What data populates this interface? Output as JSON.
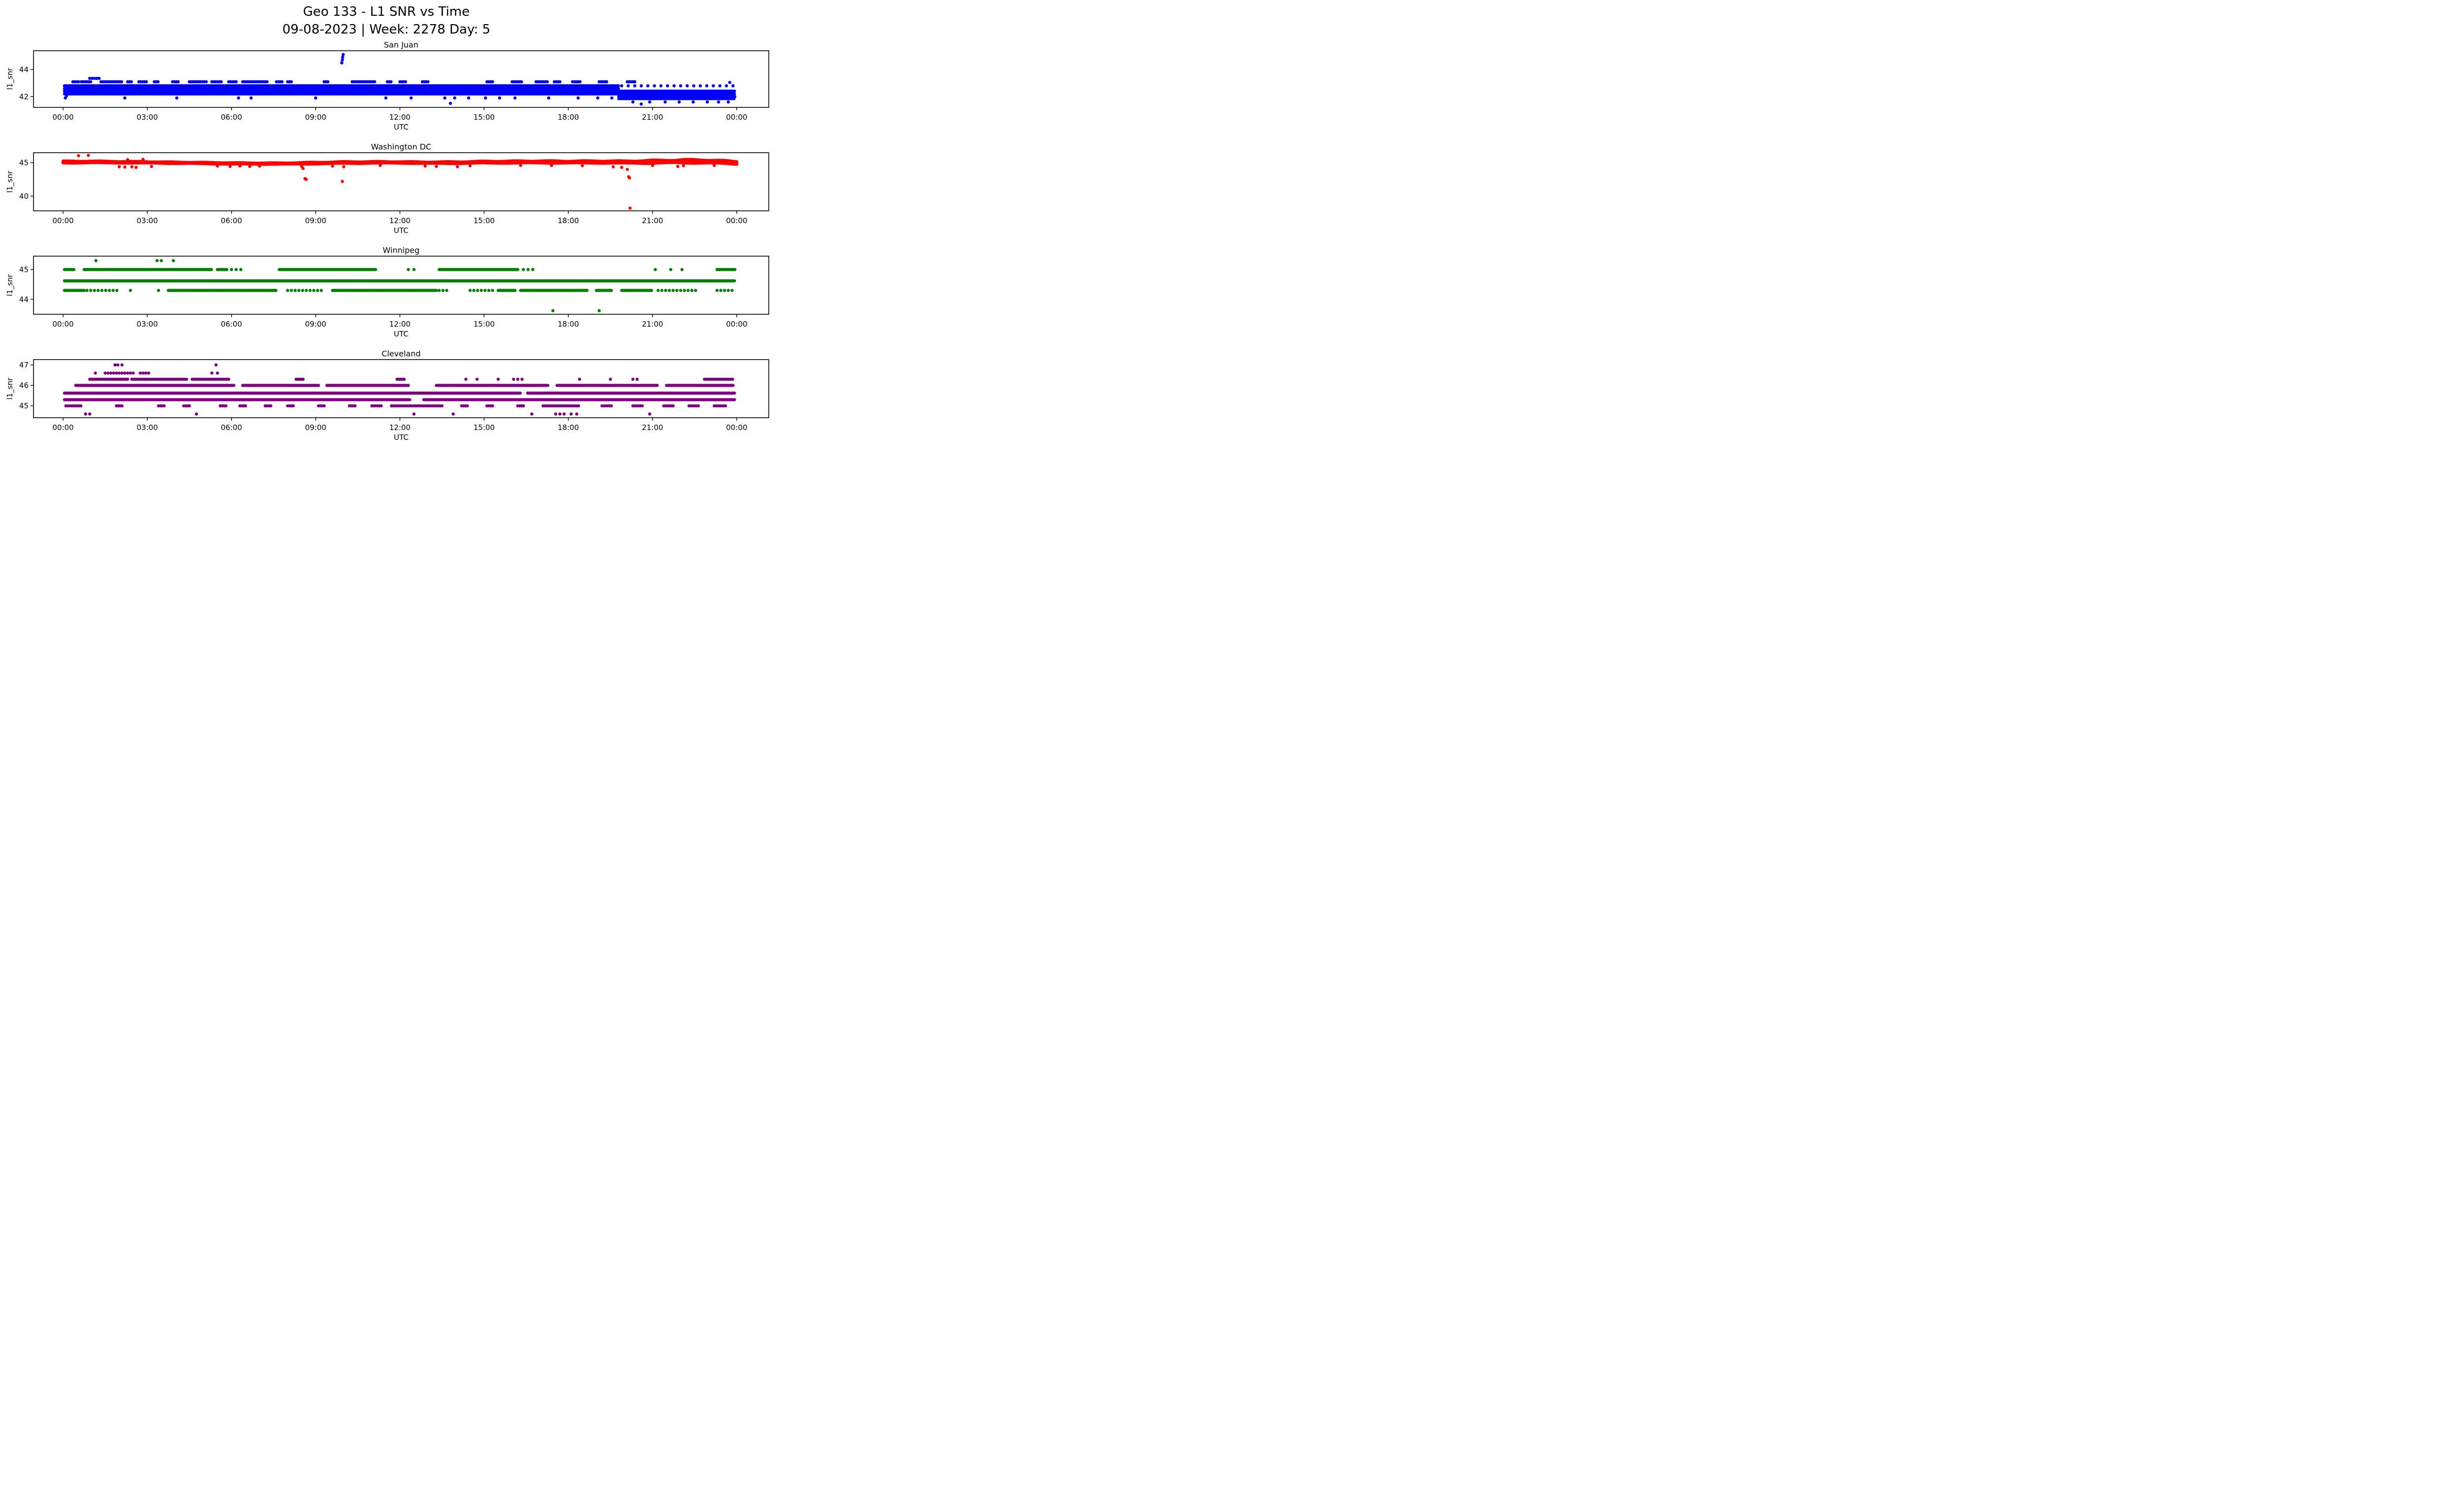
{
  "figure": {
    "suptitle_line1": "Geo 133 - L1 SNR vs Time",
    "suptitle_line2": "09-08-2023 | Week: 2278 Day: 5",
    "background": "#ffffff",
    "text_color": "#000000",
    "spine_color": "#000000"
  },
  "axes_labels": {
    "xlabel": "UTC",
    "ylabel": "l1_snr"
  },
  "x_axis": {
    "range_hours": [
      0,
      24
    ],
    "tick_hours": [
      0,
      3,
      6,
      9,
      12,
      15,
      18,
      21,
      24
    ],
    "tick_labels": [
      "00:00",
      "03:00",
      "06:00",
      "09:00",
      "12:00",
      "15:00",
      "18:00",
      "21:00",
      "00:00"
    ]
  },
  "chart_data": [
    {
      "type": "scatter",
      "station": "San Juan",
      "color": "#0000ff",
      "ylim": [
        41.2,
        45.4
      ],
      "yticks": [
        42,
        44
      ],
      "rows": [
        {
          "v": 43.35,
          "step_min": 5,
          "segments": [
            [
              0.95,
              1.35
            ]
          ]
        },
        {
          "v": 43.1,
          "step_min": 4,
          "segments": [
            [
              0.35,
              0.55
            ],
            [
              0.65,
              1.0
            ],
            [
              1.35,
              2.1
            ],
            [
              2.3,
              2.5
            ],
            [
              2.7,
              3.0
            ],
            [
              3.25,
              3.45
            ],
            [
              3.9,
              4.15
            ],
            [
              4.5,
              5.1
            ],
            [
              5.3,
              5.65
            ],
            [
              5.9,
              6.2
            ],
            [
              6.4,
              7.3
            ],
            [
              7.6,
              7.8
            ],
            [
              8.0,
              8.15
            ],
            [
              9.3,
              9.45
            ],
            [
              10.3,
              11.1
            ],
            [
              11.55,
              11.7
            ],
            [
              12.0,
              12.25
            ],
            [
              12.8,
              13.05
            ],
            [
              15.1,
              15.35
            ],
            [
              16.0,
              16.35
            ],
            [
              16.85,
              17.25
            ],
            [
              17.5,
              17.75
            ],
            [
              18.15,
              18.45
            ],
            [
              19.1,
              19.4
            ],
            [
              20.1,
              20.4
            ]
          ]
        },
        {
          "v": 42.8,
          "step_min": 2,
          "segments": [
            [
              0.05,
              19.8
            ]
          ]
        },
        {
          "v": 42.8,
          "step_min": 14,
          "segments": [
            [
              19.9,
              23.9
            ]
          ]
        },
        {
          "v": 42.6,
          "step_min": 2,
          "segments": [
            [
              0.05,
              19.8
            ]
          ]
        },
        {
          "v": 42.4,
          "step_min": 2,
          "segments": [
            [
              0.05,
              23.95
            ]
          ]
        },
        {
          "v": 42.2,
          "step_min": 2,
          "segments": [
            [
              0.05,
              23.95
            ]
          ]
        },
        {
          "v": 42.0,
          "step_min": 2,
          "segments": [
            [
              19.8,
              23.95
            ]
          ]
        },
        {
          "v": 41.85,
          "step_min": 3,
          "segments": [
            [
              19.8,
              23.95
            ]
          ]
        }
      ],
      "points": [
        [
          0.08,
          41.9
        ],
        [
          0.12,
          42.05
        ],
        [
          2.2,
          41.9
        ],
        [
          4.05,
          41.9
        ],
        [
          6.25,
          41.9
        ],
        [
          6.7,
          41.9
        ],
        [
          9.0,
          41.9
        ],
        [
          11.5,
          41.9
        ],
        [
          12.4,
          41.9
        ],
        [
          13.6,
          41.9
        ],
        [
          13.8,
          41.5
        ],
        [
          13.95,
          41.9
        ],
        [
          14.45,
          41.9
        ],
        [
          15.05,
          41.9
        ],
        [
          15.55,
          41.9
        ],
        [
          16.1,
          41.9
        ],
        [
          17.3,
          41.9
        ],
        [
          18.35,
          41.9
        ],
        [
          19.05,
          41.9
        ],
        [
          19.55,
          41.9
        ],
        [
          20.3,
          41.6
        ],
        [
          20.6,
          41.45
        ],
        [
          20.9,
          41.6
        ],
        [
          21.45,
          41.6
        ],
        [
          21.95,
          41.6
        ],
        [
          22.45,
          41.6
        ],
        [
          22.95,
          41.6
        ],
        [
          23.35,
          41.6
        ],
        [
          23.7,
          41.6
        ],
        [
          9.93,
          44.5
        ],
        [
          9.95,
          44.72
        ],
        [
          9.96,
          44.92
        ],
        [
          9.98,
          45.12
        ],
        [
          23.75,
          43.05
        ]
      ]
    },
    {
      "type": "scatter",
      "station": "Washington DC",
      "color": "#ff0000",
      "ylim": [
        37.8,
        46.5
      ],
      "yticks": [
        40,
        45
      ],
      "band": {
        "step_min": 1.2,
        "control_points": [
          [
            0,
            45.1,
            0.15
          ],
          [
            1,
            45.12,
            0.14
          ],
          [
            2,
            45.08,
            0.13
          ],
          [
            3,
            45.05,
            0.12
          ],
          [
            4,
            45.0,
            0.11
          ],
          [
            5,
            44.95,
            0.11
          ],
          [
            6,
            44.9,
            0.11
          ],
          [
            7,
            44.87,
            0.1
          ],
          [
            8,
            44.88,
            0.11
          ],
          [
            9,
            44.95,
            0.13
          ],
          [
            10,
            45.02,
            0.14
          ],
          [
            11,
            45.05,
            0.13
          ],
          [
            12,
            45.05,
            0.12
          ],
          [
            13,
            45.0,
            0.13
          ],
          [
            14,
            45.02,
            0.14
          ],
          [
            15,
            45.08,
            0.16
          ],
          [
            16,
            45.1,
            0.17
          ],
          [
            17,
            45.12,
            0.18
          ],
          [
            18,
            45.1,
            0.18
          ],
          [
            19,
            45.12,
            0.18
          ],
          [
            20,
            45.08,
            0.2
          ],
          [
            21,
            45.15,
            0.24
          ],
          [
            22,
            45.2,
            0.28
          ],
          [
            22.8,
            45.22,
            0.28
          ],
          [
            23.4,
            45.1,
            0.28
          ],
          [
            24,
            45.0,
            0.25
          ]
        ]
      },
      "rows": [],
      "points": [
        [
          0.55,
          46.05
        ],
        [
          0.9,
          46.1
        ],
        [
          2.3,
          45.45
        ],
        [
          2.85,
          45.5
        ],
        [
          2.0,
          44.4
        ],
        [
          2.2,
          44.35
        ],
        [
          2.45,
          44.4
        ],
        [
          2.6,
          44.3
        ],
        [
          3.15,
          44.45
        ],
        [
          5.5,
          44.5
        ],
        [
          5.95,
          44.45
        ],
        [
          6.3,
          44.5
        ],
        [
          6.65,
          44.45
        ],
        [
          7.0,
          44.5
        ],
        [
          8.5,
          44.45
        ],
        [
          8.55,
          44.15
        ],
        [
          8.62,
          42.62
        ],
        [
          8.66,
          42.5
        ],
        [
          9.6,
          44.5
        ],
        [
          9.95,
          42.2
        ],
        [
          10.0,
          44.4
        ],
        [
          11.3,
          44.6
        ],
        [
          12.9,
          44.5
        ],
        [
          13.3,
          44.45
        ],
        [
          14.05,
          44.4
        ],
        [
          14.5,
          44.55
        ],
        [
          16.3,
          44.6
        ],
        [
          17.4,
          44.6
        ],
        [
          18.5,
          44.55
        ],
        [
          19.6,
          44.4
        ],
        [
          19.9,
          44.3
        ],
        [
          20.1,
          44.0
        ],
        [
          20.15,
          42.9
        ],
        [
          20.18,
          42.72
        ],
        [
          20.2,
          38.2
        ],
        [
          21.0,
          44.6
        ],
        [
          21.9,
          44.45
        ],
        [
          22.1,
          44.55
        ],
        [
          23.2,
          44.6
        ]
      ]
    },
    {
      "type": "scatter",
      "station": "Winnipeg",
      "color": "#008000",
      "ylim": [
        43.5,
        45.45
      ],
      "yticks": [
        44,
        45
      ],
      "rows": [
        {
          "v": 45.0,
          "step_min": 2,
          "segments": [
            [
              0.05,
              0.4
            ],
            [
              0.75,
              5.3
            ],
            [
              5.5,
              5.85
            ],
            [
              7.7,
              11.15
            ],
            [
              13.4,
              16.2
            ],
            [
              23.3,
              23.95
            ]
          ]
        },
        {
          "v": 45.0,
          "step_min": 10,
          "segments": [
            [
              6.0,
              6.4
            ],
            [
              16.4,
              16.9
            ]
          ]
        },
        {
          "v": 44.62,
          "step_min": 2,
          "segments": [
            [
              0.05,
              23.95
            ]
          ]
        },
        {
          "v": 44.3,
          "step_min": 2,
          "segments": [
            [
              0.05,
              0.75
            ],
            [
              3.75,
              7.6
            ],
            [
              9.6,
              13.3
            ],
            [
              15.5,
              16.1
            ],
            [
              16.3,
              18.7
            ],
            [
              19.0,
              19.55
            ],
            [
              19.9,
              21.0
            ]
          ]
        },
        {
          "v": 44.3,
          "step_min": 8,
          "segments": [
            [
              0.85,
              1.95
            ],
            [
              8.0,
              9.2
            ],
            [
              13.4,
              13.7
            ],
            [
              14.5,
              15.3
            ],
            [
              21.2,
              22.6
            ],
            [
              23.3,
              23.85
            ]
          ]
        }
      ],
      "points": [
        [
          1.17,
          45.3
        ],
        [
          3.35,
          45.3
        ],
        [
          3.5,
          45.3
        ],
        [
          3.93,
          45.3
        ],
        [
          12.3,
          45.0
        ],
        [
          12.5,
          45.0
        ],
        [
          21.1,
          45.0
        ],
        [
          21.65,
          45.0
        ],
        [
          22.05,
          45.0
        ],
        [
          2.4,
          44.3
        ],
        [
          3.4,
          44.3
        ],
        [
          17.45,
          43.62
        ],
        [
          19.1,
          43.62
        ]
      ]
    },
    {
      "type": "scatter",
      "station": "Cleveland",
      "color": "#800080",
      "ylim": [
        44.42,
        47.26
      ],
      "yticks": [
        45,
        46,
        47
      ],
      "rows": [
        {
          "v": 46.6,
          "step_min": 6,
          "segments": [
            [
              1.5,
              2.6
            ],
            [
              2.75,
              3.1
            ]
          ]
        },
        {
          "v": 46.3,
          "step_min": 3,
          "segments": [
            [
              0.95,
              2.3
            ],
            [
              2.45,
              4.4
            ],
            [
              4.6,
              5.9
            ],
            [
              8.3,
              8.6
            ],
            [
              11.9,
              12.2
            ],
            [
              22.85,
              23.9
            ]
          ]
        },
        {
          "v": 46.0,
          "step_min": 2,
          "segments": [
            [
              0.45,
              6.1
            ],
            [
              6.4,
              9.1
            ],
            [
              9.4,
              12.3
            ],
            [
              13.3,
              17.3
            ],
            [
              17.6,
              21.2
            ],
            [
              21.5,
              23.9
            ]
          ]
        },
        {
          "v": 45.62,
          "step_min": 2,
          "segments": [
            [
              0.05,
              16.3
            ],
            [
              16.55,
              23.95
            ]
          ]
        },
        {
          "v": 45.3,
          "step_min": 2,
          "segments": [
            [
              0.05,
              12.35
            ],
            [
              12.85,
              23.95
            ]
          ]
        },
        {
          "v": 45.0,
          "step_min": 4,
          "segments": [
            [
              0.1,
              0.65
            ],
            [
              1.9,
              2.15
            ],
            [
              3.4,
              3.65
            ],
            [
              4.3,
              4.55
            ],
            [
              5.6,
              5.85
            ],
            [
              6.3,
              6.55
            ],
            [
              7.2,
              7.45
            ],
            [
              8.0,
              8.25
            ],
            [
              9.1,
              9.35
            ],
            [
              10.2,
              10.45
            ],
            [
              11.0,
              11.35
            ],
            [
              11.7,
              13.5
            ],
            [
              14.2,
              14.45
            ],
            [
              15.1,
              15.35
            ],
            [
              16.2,
              16.45
            ],
            [
              17.1,
              18.4
            ],
            [
              19.2,
              19.55
            ],
            [
              20.3,
              20.65
            ],
            [
              21.4,
              21.75
            ],
            [
              22.3,
              22.65
            ],
            [
              23.2,
              23.65
            ]
          ]
        }
      ],
      "points": [
        [
          1.85,
          47.0
        ],
        [
          1.95,
          47.0
        ],
        [
          2.1,
          47.0
        ],
        [
          5.45,
          47.0
        ],
        [
          1.15,
          46.6
        ],
        [
          5.3,
          46.6
        ],
        [
          5.5,
          46.6
        ],
        [
          14.35,
          46.3
        ],
        [
          14.75,
          46.3
        ],
        [
          15.5,
          46.3
        ],
        [
          16.05,
          46.3
        ],
        [
          16.2,
          46.3
        ],
        [
          16.35,
          46.3
        ],
        [
          18.4,
          46.3
        ],
        [
          19.5,
          46.3
        ],
        [
          20.3,
          46.3
        ],
        [
          20.45,
          46.3
        ],
        [
          0.8,
          44.6
        ],
        [
          0.95,
          44.6
        ],
        [
          4.75,
          44.6
        ],
        [
          12.5,
          44.6
        ],
        [
          13.9,
          44.6
        ],
        [
          16.7,
          44.6
        ],
        [
          17.55,
          44.6
        ],
        [
          17.7,
          44.6
        ],
        [
          17.85,
          44.6
        ],
        [
          18.1,
          44.6
        ],
        [
          18.3,
          44.6
        ],
        [
          20.9,
          44.6
        ]
      ]
    }
  ]
}
